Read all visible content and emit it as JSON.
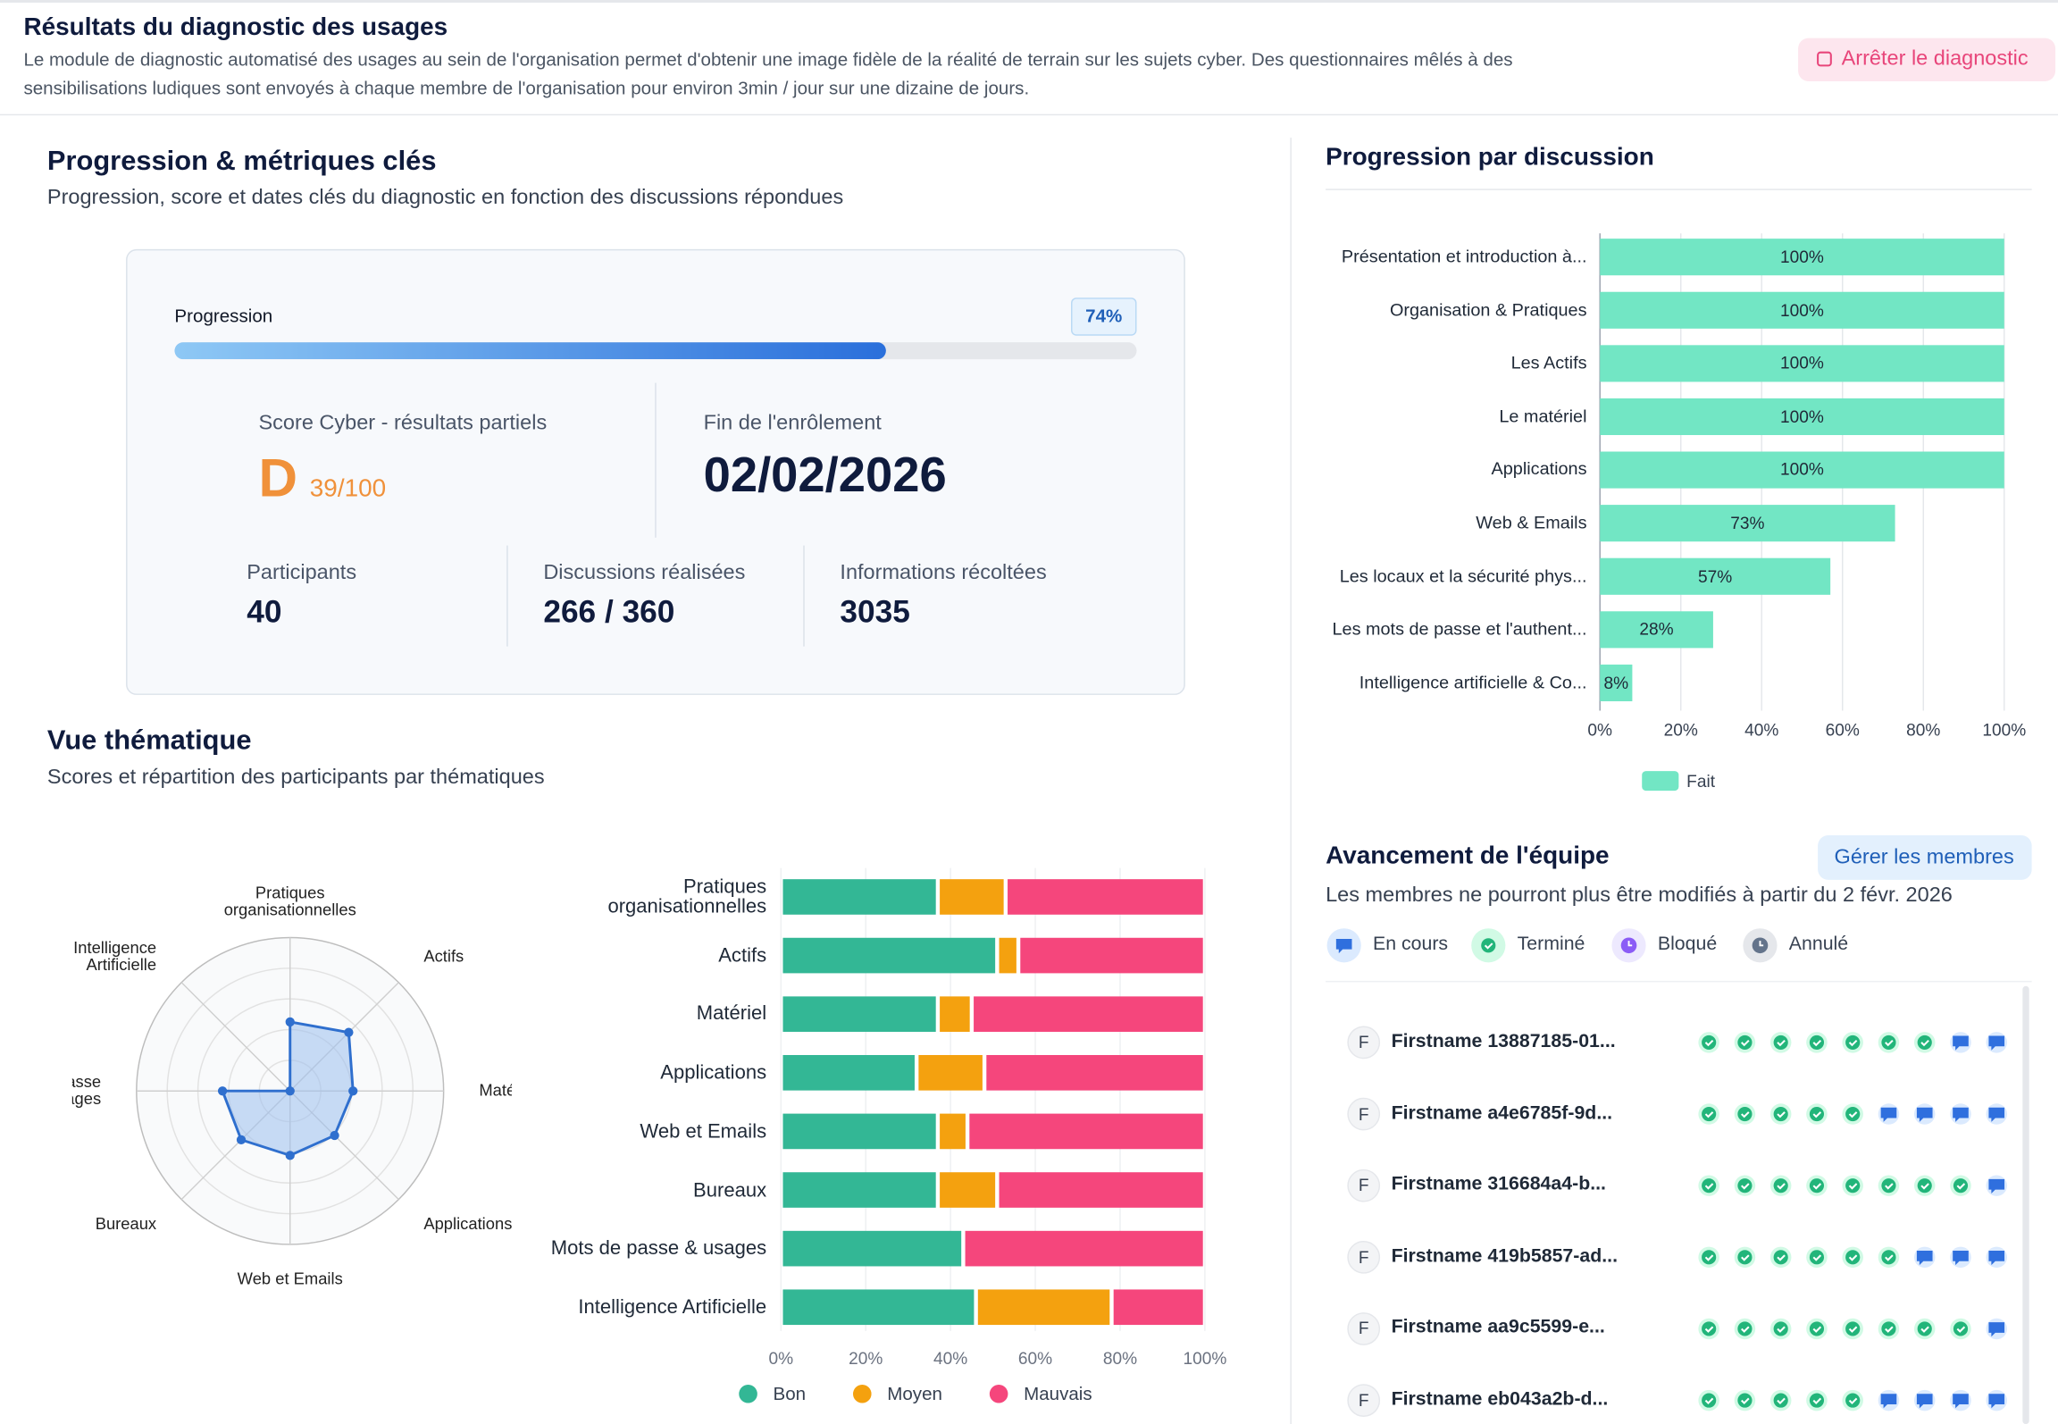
{
  "header": {
    "title": "Résultats du diagnostic des usages",
    "description": "Le module de diagnostic automatisé des usages au sein de l'organisation permet d'obtenir une image fidèle de la réalité de terrain sur les sujets cyber. Des questionnaires mêlés à des sensibilisations ludiques sont envoyés à chaque membre de l'organisation pour environ 3min / jour sur une dizaine de jours.",
    "stop_button": "Arrêter le diagnostic"
  },
  "metrics": {
    "title": "Progression & métriques clés",
    "subtitle": "Progression, score et dates clés du diagnostic en fonction des discussions répondues",
    "progress_label": "Progression",
    "progress": {
      "value": 74,
      "label": "74%"
    },
    "score_title": "Score Cyber - résultats partiels",
    "grade": "D",
    "score": "39/100",
    "enrollment_title": "Fin de l'enrôlement",
    "enrollment_date": "02/02/2026",
    "stats": [
      {
        "label": "Participants",
        "value": 40
      },
      {
        "label": "Discussions réalisées",
        "value": "266 / 360"
      },
      {
        "label": "Informations récoltées",
        "value": 3035
      }
    ]
  },
  "discussion_progress": {
    "type": "bar",
    "orientation": "horizontal",
    "title": "Progression par discussion",
    "categories": [
      "Présentation et introduction à...",
      "Organisation & Pratiques",
      "Les Actifs",
      "Le matériel",
      "Applications",
      "Web & Emails",
      "Les locaux et la sécurité phys...",
      "Les mots de passe et l'authent...",
      "Intelligence artificielle & Co..."
    ],
    "series": [
      {
        "name": "Fait",
        "color": "#72e6c4",
        "values": [
          100,
          100,
          100,
          100,
          100,
          73,
          57,
          28,
          8
        ],
        "value_labels": [
          "100%",
          "100%",
          "100%",
          "100%",
          "100%",
          "73%",
          "57%",
          "28%",
          "8%"
        ]
      }
    ],
    "xlim": [
      0,
      100
    ],
    "xticks": [
      {
        "value": 0,
        "label": "0%"
      },
      {
        "value": 20,
        "label": "20%"
      },
      {
        "value": 40,
        "label": "40%"
      },
      {
        "value": 60,
        "label": "60%"
      },
      {
        "value": 80,
        "label": "80%"
      },
      {
        "value": 100,
        "label": "100%"
      }
    ],
    "grid": true
  },
  "thematic": {
    "title": "Vue thématique",
    "subtitle": "Scores et répartition des participants par thématiques",
    "radar": {
      "type": "radar",
      "categories": [
        "Pratiques organisationnelles",
        "Actifs",
        "Matériel",
        "Applications",
        "Web et Emails",
        "Bureaux",
        "Mots de passe & usages",
        "Intelligence Artificielle"
      ],
      "values": [
        45,
        54,
        41,
        41,
        42,
        45,
        44,
        0
      ],
      "color": "#2f6fce",
      "rlim": [
        0,
        100
      ],
      "rticks": [
        20,
        40,
        60,
        80,
        100
      ]
    },
    "distribution": {
      "type": "bar",
      "orientation": "horizontal",
      "stacked": true,
      "categories": [
        "Pratiques organisationnelles",
        "Actifs",
        "Matériel",
        "Applications",
        "Web et Emails",
        "Bureaux",
        "Mots de passe & usages",
        "Intelligence Artificielle"
      ],
      "series": [
        {
          "name": "Bon",
          "color": "#33b795",
          "values": [
            37,
            51,
            37,
            32,
            37,
            37,
            43,
            46
          ]
        },
        {
          "name": "Moyen",
          "color": "#f4a10f",
          "values": [
            16,
            5,
            8,
            16,
            7,
            14,
            0,
            32
          ]
        },
        {
          "name": "Mauvais",
          "color": "#f5467c",
          "values": [
            47,
            44,
            55,
            52,
            56,
            49,
            57,
            22
          ]
        }
      ],
      "xlim": [
        0,
        100
      ],
      "xticks": [
        {
          "value": 0,
          "label": "0%"
        },
        {
          "value": 20,
          "label": "20%"
        },
        {
          "value": 40,
          "label": "40%"
        },
        {
          "value": 60,
          "label": "60%"
        },
        {
          "value": 80,
          "label": "80%"
        },
        {
          "value": 100,
          "label": "100%"
        }
      ]
    }
  },
  "team": {
    "title": "Avancement de l'équipe",
    "manage_button": "Gérer les membres",
    "note": "Les membres ne pourront plus être modifiés à partir du 2 févr. 2026",
    "statuses": [
      {
        "label": "En cours",
        "color": "#2f6fde"
      },
      {
        "label": "Terminé",
        "color": "#22b57a"
      },
      {
        "label": "Bloqué",
        "color": "#8b5cf6"
      },
      {
        "label": "Annulé",
        "color": "#64748b"
      }
    ],
    "members": [
      {
        "initial": "F",
        "name": "Firstname 13887185-01...",
        "progress": [
          1,
          1,
          1,
          1,
          1,
          1,
          1,
          0,
          0
        ]
      },
      {
        "initial": "F",
        "name": "Firstname a4e6785f-9d...",
        "progress": [
          1,
          1,
          1,
          1,
          1,
          0,
          0,
          0,
          0
        ]
      },
      {
        "initial": "F",
        "name": "Firstname 316684a4-b...",
        "progress": [
          1,
          1,
          1,
          1,
          1,
          1,
          1,
          1,
          0
        ]
      },
      {
        "initial": "F",
        "name": "Firstname 419b5857-ad...",
        "progress": [
          1,
          1,
          1,
          1,
          1,
          1,
          0,
          0,
          0
        ]
      },
      {
        "initial": "F",
        "name": "Firstname aa9c5599-e...",
        "progress": [
          1,
          1,
          1,
          1,
          1,
          1,
          1,
          1,
          0
        ]
      },
      {
        "initial": "F",
        "name": "Firstname eb043a2b-d...",
        "progress": [
          1,
          1,
          1,
          1,
          1,
          0,
          0,
          0,
          0
        ]
      }
    ]
  }
}
